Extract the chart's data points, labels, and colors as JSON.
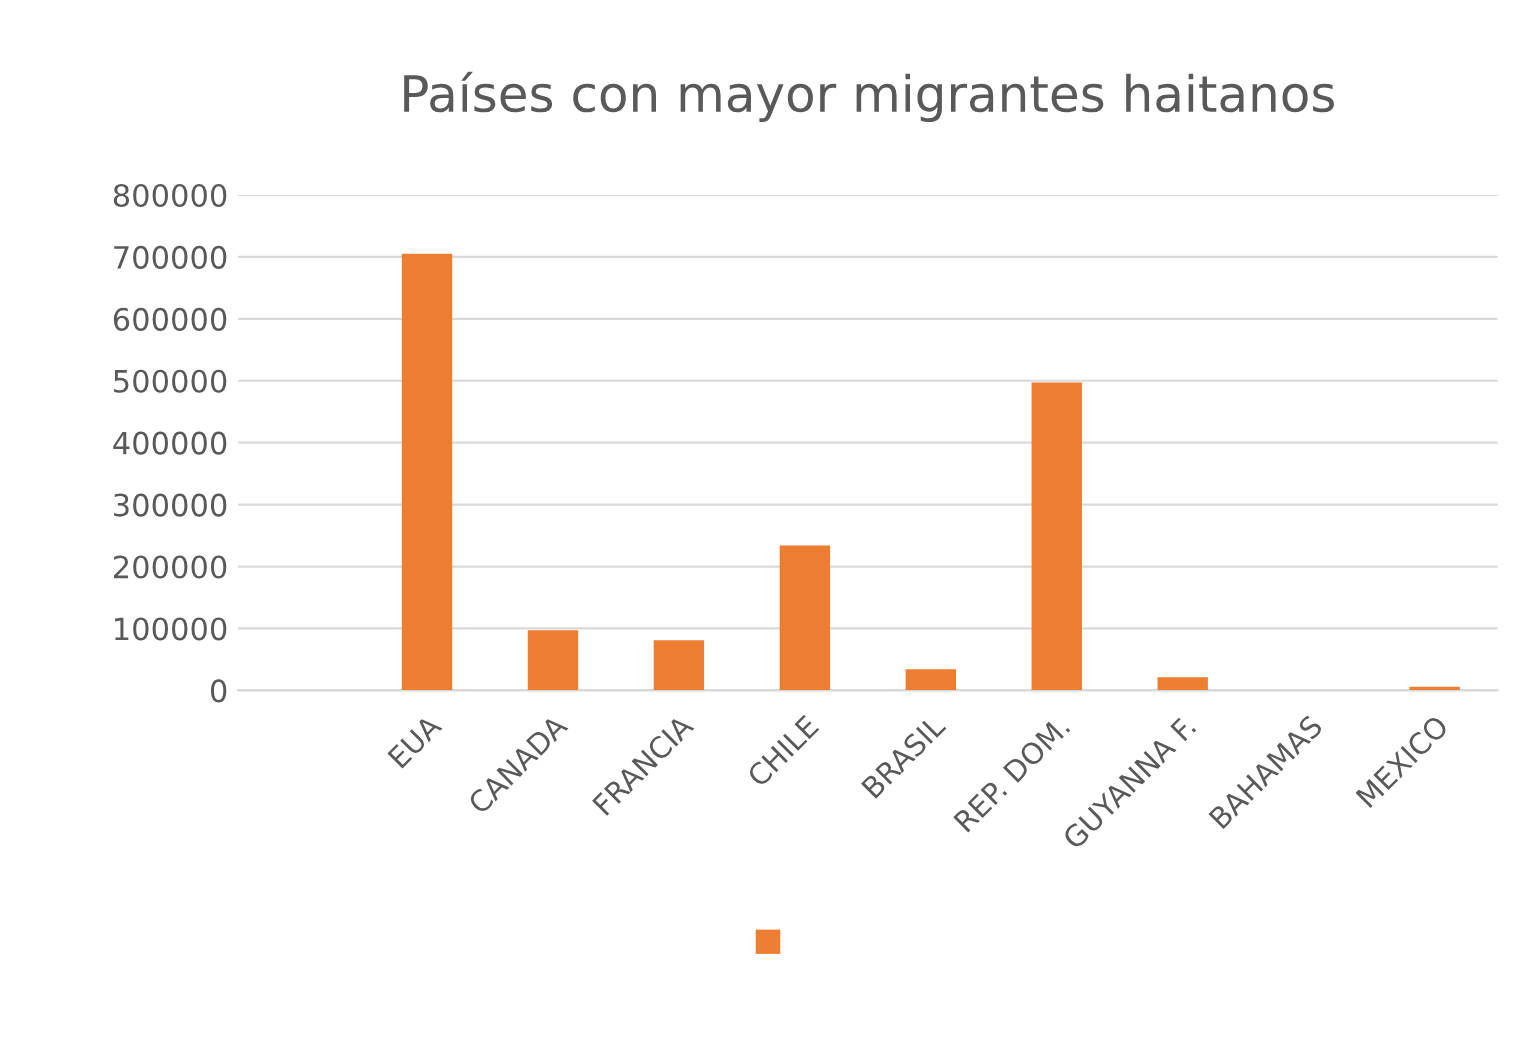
{
  "chart_data": {
    "type": "bar",
    "title": "Países con mayor migrantes haitanos",
    "categories": [
      null,
      "EUA",
      "CANADA",
      "FRANCIA",
      "CHILE",
      "BRASIL",
      "REP. DOM.",
      "GUYANNA F.",
      "BAHAMAS",
      "MEXICO"
    ],
    "series": [
      {
        "color": "#ed7d31",
        "values": [
          null,
          705000,
          97000,
          81000,
          234000,
          34000,
          497000,
          21000,
          0,
          6000
        ]
      }
    ],
    "ylim": [
      0,
      800000
    ],
    "yticks": [
      0,
      100000,
      200000,
      300000,
      400000,
      500000,
      600000,
      700000,
      800000
    ],
    "grid": "y"
  }
}
